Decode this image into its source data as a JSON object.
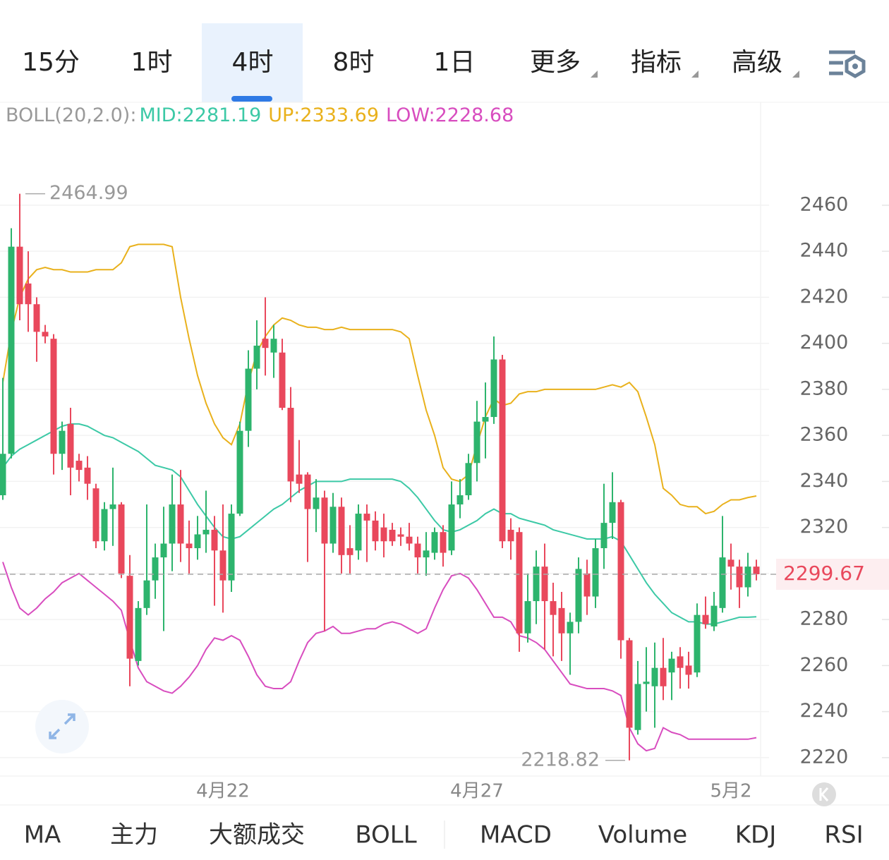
{
  "tabs": [
    "15分",
    "1时",
    "4时",
    "8时",
    "1日",
    "更多",
    "指标",
    "高级"
  ],
  "active_tab": 2,
  "bottom_tabs": [
    "MA",
    "主力",
    "大额成交",
    "BOLL",
    "MACD",
    "Volume",
    "KDJ",
    "RSI"
  ],
  "active_bottom_tab": 3,
  "chart_data": {
    "type": "candlestick",
    "indicator": "BOLL(20,2.0):",
    "up_color": "#2db46d",
    "down_color": "#e9485c",
    "ylim": [
      2212,
      2494
    ],
    "yticks": [
      2220,
      2240,
      2260,
      2280,
      2300,
      2320,
      2340,
      2360,
      2380,
      2400,
      2420,
      2440,
      2460
    ],
    "grid": true,
    "categories": [
      null,
      null,
      null,
      null,
      null,
      null,
      null,
      null,
      null,
      null,
      null,
      null,
      null,
      null,
      null,
      null,
      null,
      null,
      null,
      null,
      null,
      null,
      null,
      null,
      null,
      null,
      "4月22",
      null,
      null,
      null,
      null,
      null,
      null,
      null,
      null,
      null,
      null,
      null,
      null,
      null,
      null,
      null,
      null,
      null,
      null,
      null,
      null,
      null,
      null,
      null,
      null,
      null,
      null,
      null,
      null,
      null,
      "4月27",
      null,
      null,
      null,
      null,
      null,
      null,
      null,
      null,
      null,
      null,
      null,
      null,
      null,
      null,
      null,
      null,
      null,
      null,
      null,
      null,
      null,
      null,
      null,
      null,
      null,
      null,
      null,
      null,
      null,
      "5月2",
      null,
      null,
      null
    ],
    "open": [
      2334,
      2352,
      2442,
      2426,
      2417,
      2405,
      2402,
      2352,
      2365,
      2349,
      2346,
      2337,
      2314,
      2328,
      2330,
      2299,
      2262,
      2285,
      2297,
      2307,
      2313,
      2330,
      2313,
      2311,
      2317,
      2319,
      2310,
      2297,
      2326,
      2362,
      2389,
      2402,
      2396,
      2396,
      2372,
      2343,
      2343,
      2328,
      2333,
      2313,
      2329,
      2311,
      2310,
      2326,
      2323,
      2320,
      2319,
      2317,
      2316,
      2313,
      2307,
      2309,
      2318,
      2310,
      2330,
      2334,
      2348,
      2366,
      2368,
      2393,
      2319,
      2318,
      2274,
      2288,
      2303,
      2288,
      2285,
      2274,
      2279,
      2300,
      2290,
      2311,
      2322,
      2331,
      2271,
      2232,
      2252,
      2251,
      2259,
      2257,
      2264,
      2260,
      2257,
      2282,
      2277,
      2285,
      2306,
      2303,
      2294,
      2303
    ],
    "high": [
      2385,
      2450,
      2464.99,
      2440,
      2420,
      2408,
      2404,
      2366,
      2372,
      2352,
      2351,
      2339,
      2331,
      2346,
      2331,
      2308,
      2288,
      2330,
      2313,
      2329,
      2343,
      2345,
      2323,
      2325,
      2336,
      2325,
      2330,
      2330,
      2366,
      2397,
      2410,
      2420,
      2408,
      2402,
      2381,
      2358,
      2344,
      2341,
      2336,
      2335,
      2333,
      2321,
      2330,
      2330,
      2327,
      2326,
      2322,
      2320,
      2322,
      2316,
      2318,
      2320,
      2321,
      2340,
      2341,
      2352,
      2375,
      2383,
      2403,
      2395,
      2324,
      2320,
      2300,
      2310,
      2313,
      2296,
      2292,
      2283,
      2307,
      2306,
      2315,
      2339,
      2344,
      2332,
      2272,
      2262,
      2268,
      2270,
      2272,
      2266,
      2268,
      2266,
      2287,
      2290,
      2292,
      2325,
      2313,
      2306,
      2309,
      2306
    ],
    "low": [
      2332,
      2350,
      2410,
      2405,
      2392,
      2400,
      2343,
      2345,
      2334,
      2340,
      2332,
      2311,
      2310,
      2312,
      2298,
      2251,
      2260,
      2282,
      2289,
      2275,
      2301,
      2305,
      2300,
      2306,
      2309,
      2286,
      2283,
      2292,
      2325,
      2355,
      2380,
      2386,
      2385,
      2371,
      2331,
      2335,
      2305,
      2318,
      2275,
      2309,
      2300,
      2300,
      2306,
      2305,
      2310,
      2307,
      2312,
      2312,
      2310,
      2300,
      2299,
      2306,
      2303,
      2308,
      2324,
      2332,
      2340,
      2350,
      2365,
      2311,
      2306,
      2266,
      2270,
      2278,
      2267,
      2264,
      2262,
      2256,
      2274,
      2282,
      2285,
      2302,
      2315,
      2263,
      2218.82,
      2230,
      2240,
      2233,
      2245,
      2245,
      2250,
      2250,
      2255,
      2276,
      2275,
      2283,
      2293,
      2285,
      2290,
      2297
    ],
    "close": [
      2352,
      2442,
      2417,
      2417,
      2405,
      2403,
      2352,
      2362,
      2346,
      2345,
      2339,
      2314,
      2328,
      2330,
      2300,
      2263,
      2285,
      2297,
      2307,
      2313,
      2330,
      2313,
      2311,
      2317,
      2319,
      2310,
      2297,
      2326,
      2362,
      2389,
      2399,
      2398,
      2402,
      2372,
      2340,
      2339,
      2328,
      2333,
      2313,
      2329,
      2308,
      2308,
      2326,
      2323,
      2314,
      2314,
      2314,
      2316,
      2313,
      2307,
      2310,
      2318,
      2309,
      2330,
      2334,
      2348,
      2366,
      2368,
      2393,
      2314,
      2314,
      2274,
      2288,
      2303,
      2288,
      2282,
      2274,
      2279,
      2302,
      2290,
      2311,
      2322,
      2331,
      2271,
      2233,
      2252,
      2253,
      2259,
      2251,
      2263,
      2259,
      2256,
      2282,
      2278,
      2286,
      2307,
      2303,
      2294,
      2303,
      2299.67
    ],
    "series": [
      {
        "name": "MID:",
        "color": "#3cc9a6",
        "values": [
          2346,
          2351,
          2354,
          2356,
          2358,
          2360,
          2362,
          2364,
          2365,
          2365,
          2364,
          2362,
          2360,
          2359,
          2357,
          2355,
          2353,
          2350,
          2347,
          2346,
          2345,
          2342,
          2336,
          2330,
          2325,
          2320,
          2316,
          2315,
          2316,
          2319,
          2322,
          2325,
          2328,
          2330,
          2333,
          2336,
          2338,
          2340,
          2340,
          2340,
          2340,
          2341,
          2341,
          2341,
          2341,
          2341,
          2341,
          2340,
          2337,
          2333,
          2328,
          2323,
          2319,
          2318,
          2319,
          2321,
          2323,
          2326,
          2328,
          2326,
          2326,
          2324,
          2323,
          2322,
          2321,
          2319,
          2318,
          2317,
          2316,
          2315,
          2315,
          2315,
          2316,
          2314,
          2308,
          2302,
          2296,
          2291,
          2287,
          2283,
          2281,
          2279,
          2279,
          2278,
          2278,
          2279,
          2280,
          2281,
          2281,
          2281.19
        ]
      },
      {
        "name": "UP:",
        "color": "#e9b11c",
        "values": [
          2383,
          2405,
          2420,
          2428,
          2432,
          2433,
          2432,
          2432,
          2431,
          2431,
          2431,
          2432,
          2432,
          2432,
          2435,
          2442,
          2443,
          2443,
          2443,
          2443,
          2442,
          2420,
          2402,
          2386,
          2374,
          2365,
          2359,
          2356,
          2365,
          2383,
          2396,
          2403,
          2408,
          2411,
          2410,
          2408,
          2407,
          2407,
          2406,
          2406,
          2407,
          2406,
          2406,
          2406,
          2406,
          2406,
          2406,
          2405,
          2402,
          2386,
          2371,
          2360,
          2346,
          2341,
          2340,
          2343,
          2356,
          2368,
          2376,
          2373,
          2374,
          2378,
          2379,
          2379,
          2380,
          2380,
          2380,
          2380,
          2380,
          2380,
          2380,
          2381,
          2382,
          2381,
          2383,
          2379,
          2368,
          2356,
          2337,
          2334,
          2330,
          2329,
          2329,
          2326,
          2327,
          2330,
          2332,
          2332,
          2333,
          2333.69
        ]
      },
      {
        "name": "LOW:",
        "color": "#d84dbf",
        "values": [
          2305,
          2294,
          2285,
          2282,
          2285,
          2289,
          2292,
          2296,
          2298,
          2300,
          2297,
          2294,
          2291,
          2288,
          2284,
          2271,
          2259,
          2253,
          2251,
          2249,
          2248,
          2251,
          2255,
          2260,
          2267,
          2272,
          2271,
          2273,
          2271,
          2264,
          2256,
          2251,
          2250,
          2250,
          2253,
          2262,
          2270,
          2274,
          2275,
          2277,
          2274,
          2274,
          2275,
          2276,
          2276,
          2278,
          2279,
          2278,
          2276,
          2274,
          2276,
          2285,
          2293,
          2299,
          2300,
          2298,
          2293,
          2287,
          2281,
          2281,
          2279,
          2273,
          2272,
          2270,
          2267,
          2262,
          2257,
          2252,
          2251,
          2250,
          2250,
          2250,
          2249,
          2247,
          2233,
          2226,
          2223,
          2224,
          2233,
          2231,
          2230,
          2228,
          2228,
          2228,
          2228,
          2228,
          2228,
          2228,
          2228,
          2228.68
        ]
      }
    ]
  }
}
